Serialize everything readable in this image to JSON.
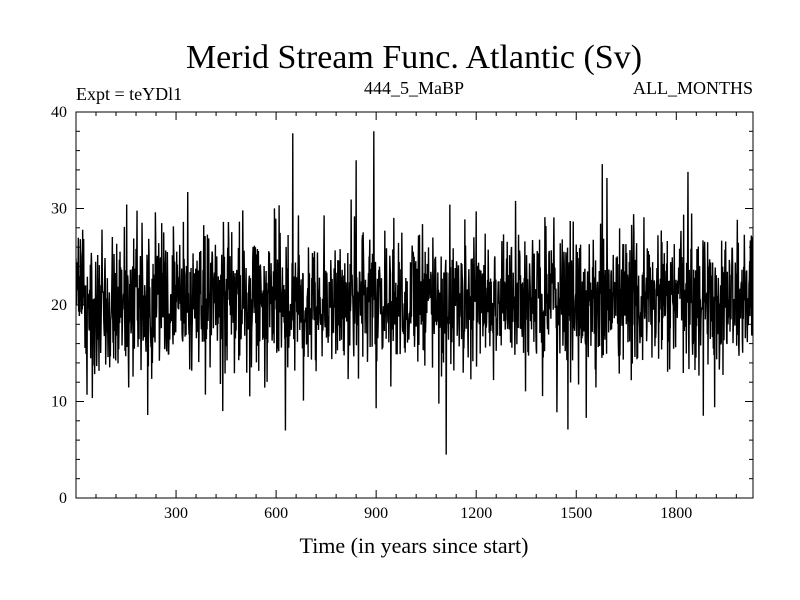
{
  "chart_data": {
    "type": "line",
    "title": "Merid Stream Func. Atlantic (Sv)",
    "left_label": "Expt = teYDl1",
    "center_label": "444_5_MaBP",
    "right_label": "ALL_MONTHS",
    "xlabel": "Time (in years since start)",
    "ylabel": "",
    "xlim": [
      0,
      2030
    ],
    "ylim": [
      0,
      40
    ],
    "x_ticks": [
      300,
      600,
      900,
      1200,
      1500,
      1800
    ],
    "y_ticks": [
      0,
      10,
      20,
      30,
      40
    ],
    "series": [
      {
        "name": "Merid Stream Func. Atlantic",
        "color": "#000000",
        "n_points": 2030,
        "mean": 20.5,
        "std": 3.6,
        "min": 4.5,
        "max": 38.0,
        "extremes": [
          {
            "x": 33,
            "y": 10.7
          },
          {
            "x": 215,
            "y": 8.6
          },
          {
            "x": 440,
            "y": 9.0
          },
          {
            "x": 628,
            "y": 7.0
          },
          {
            "x": 650,
            "y": 37.8
          },
          {
            "x": 840,
            "y": 35.0
          },
          {
            "x": 893,
            "y": 38.0
          },
          {
            "x": 900,
            "y": 9.3
          },
          {
            "x": 1110,
            "y": 4.5
          },
          {
            "x": 1475,
            "y": 7.1
          },
          {
            "x": 1530,
            "y": 8.3
          },
          {
            "x": 1578,
            "y": 34.6
          },
          {
            "x": 1835,
            "y": 33.8
          },
          {
            "x": 1915,
            "y": 9.4
          }
        ]
      }
    ]
  }
}
